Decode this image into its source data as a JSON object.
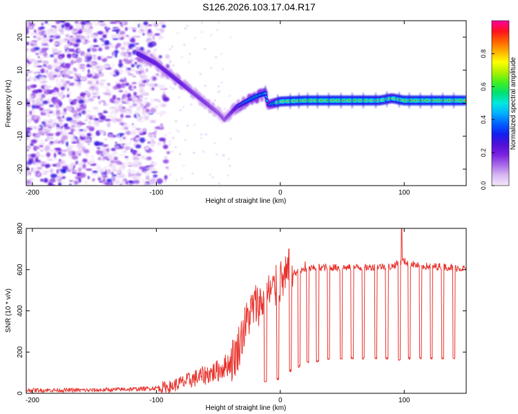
{
  "title": "S126.2026.103.17.04.R17",
  "colors": {
    "snr_line": "#e8322c",
    "axis": "#000000",
    "colormap": [
      "#f4e8fb",
      "#d9b8f2",
      "#a86ae8",
      "#7a22e0",
      "#5010d8",
      "#1020f0",
      "#0060ff",
      "#00b0ff",
      "#00e8e0",
      "#00e070",
      "#40f020",
      "#b0f000",
      "#ffff00",
      "#ffb000",
      "#ff6000",
      "#ff1020",
      "#ff00a0"
    ]
  },
  "chart_data": [
    {
      "type": "heatmap",
      "name": "spectrogram",
      "xlabel": "Height of straight line (km)",
      "ylabel": "Frequency (Hz)",
      "xlim": [
        -205,
        150
      ],
      "ylim": [
        -25,
        25
      ],
      "xticks": [
        -200,
        -100,
        0,
        100
      ],
      "xtick_labels": [
        "-200",
        "-100",
        "0",
        "100"
      ],
      "yticks": [
        -20,
        -10,
        0,
        10,
        20
      ],
      "ytick_labels": [
        "-20",
        "-10",
        "0",
        "10",
        "20"
      ],
      "colorbar": {
        "label": "Normalized spectral amplitude",
        "range": [
          0,
          1
        ],
        "ticks": [
          0.0,
          0.2,
          0.4,
          0.6,
          0.8
        ],
        "tick_labels": [
          "0.0",
          "0.2",
          "0.4",
          "0.6",
          "0.8"
        ]
      },
      "ridge": {
        "x": [
          -115,
          -100,
          -90,
          -80,
          -70,
          -60,
          -50,
          -45,
          -40,
          -35,
          -30,
          -20,
          -12,
          -10,
          -5,
          0,
          20,
          40,
          60,
          80,
          90,
          100,
          120,
          150
        ],
        "freq_hz": [
          15,
          12,
          9,
          6,
          3,
          0,
          -3,
          -5,
          -3,
          -1,
          0,
          2,
          3,
          -0.5,
          0,
          0.5,
          0.8,
          0.8,
          0.8,
          0.8,
          1.5,
          0.8,
          0.8,
          0.8
        ],
        "amplitude": [
          0.35,
          0.3,
          0.3,
          0.3,
          0.25,
          0.25,
          0.2,
          0.2,
          0.25,
          0.35,
          0.45,
          0.55,
          0.5,
          0.4,
          0.65,
          0.85,
          0.9,
          0.9,
          0.9,
          0.85,
          0.8,
          0.9,
          0.9,
          0.9
        ]
      },
      "noise_region": {
        "x_range": [
          -205,
          -90
        ],
        "freq_range_hz": [
          -25,
          25
        ],
        "typical_amplitude": [
          0.0,
          0.1
        ]
      }
    },
    {
      "type": "line",
      "name": "snr",
      "xlabel": "Height of straight line (km)",
      "ylabel": "SNR (10 * v/v)",
      "xlim": [
        -205,
        150
      ],
      "ylim": [
        0,
        800
      ],
      "xticks": [
        -200,
        -100,
        0,
        100
      ],
      "xtick_labels": [
        "-200",
        "-100",
        "0",
        "100"
      ],
      "yticks": [
        0,
        200,
        400,
        600,
        800
      ],
      "ytick_labels": [
        "0",
        "200",
        "400",
        "600",
        "800"
      ],
      "series": [
        {
          "name": "SNR",
          "x": [
            -205,
            -150,
            -120,
            -100,
            -90,
            -80,
            -70,
            -60,
            -50,
            -40,
            -35,
            -30,
            -25,
            -20,
            -15,
            -10,
            -5,
            0,
            5,
            10,
            15,
            20,
            25,
            30,
            40,
            50,
            60,
            70,
            80,
            90,
            98,
            100,
            105,
            110,
            120,
            130,
            140,
            150
          ],
          "y": [
            15,
            15,
            20,
            25,
            30,
            50,
            70,
            90,
            110,
            150,
            200,
            300,
            380,
            430,
            440,
            480,
            500,
            540,
            560,
            580,
            590,
            600,
            605,
            610,
            610,
            610,
            610,
            610,
            615,
            615,
            640,
            640,
            630,
            620,
            615,
            615,
            610,
            605
          ]
        }
      ],
      "dropouts": {
        "x": [
          -12,
          -2,
          8,
          15,
          22,
          30,
          39,
          49,
          58,
          67,
          77,
          86,
          96,
          104,
          113,
          122,
          131,
          140
        ],
        "y": [
          60,
          70,
          110,
          130,
          150,
          155,
          165,
          170,
          170,
          170,
          170,
          170,
          165,
          170,
          170,
          170,
          170,
          170
        ]
      },
      "spikes": {
        "x": [
          7,
          20,
          98
        ],
        "y": [
          700,
          640,
          800
        ]
      }
    }
  ]
}
